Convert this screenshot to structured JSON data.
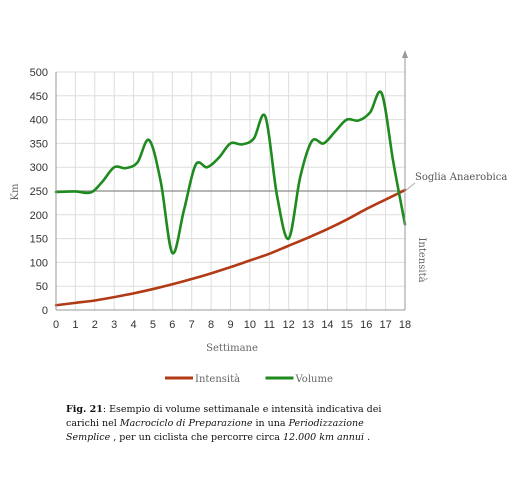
{
  "chart_data": {
    "type": "line",
    "xlabel": "Settimane",
    "ylabel": "Km",
    "y2label": "Intensità",
    "xlim": [
      0,
      18
    ],
    "ylim": [
      0,
      500
    ],
    "x_ticks": [
      0,
      1,
      2,
      3,
      4,
      5,
      6,
      7,
      8,
      9,
      10,
      11,
      12,
      13,
      14,
      15,
      16,
      17,
      18
    ],
    "y_ticks": [
      0,
      50,
      100,
      150,
      200,
      250,
      300,
      350,
      400,
      450,
      500
    ],
    "grid": true,
    "legend_position": "bottom",
    "reference_line": {
      "y": 250,
      "label": "Soglia Anaerobica"
    },
    "series": [
      {
        "name": "Intensità",
        "color": "#b23a14",
        "x": [
          0,
          1,
          2,
          3,
          4,
          5,
          6,
          7,
          8,
          9,
          10,
          11,
          12,
          13,
          14,
          15,
          16,
          17,
          18
        ],
        "values": [
          10,
          15,
          20,
          27,
          35,
          44,
          54,
          65,
          77,
          90,
          104,
          118,
          135,
          152,
          170,
          190,
          212,
          232,
          252
        ]
      },
      {
        "name": "Volume",
        "color": "#1f8a1f",
        "x": [
          0,
          1,
          1.8,
          2.4,
          3,
          3.6,
          4.2,
          4.8,
          5.4,
          6,
          6.6,
          7.2,
          7.8,
          8.4,
          9,
          9.6,
          10.2,
          10.8,
          11.4,
          12,
          12.6,
          13.2,
          13.8,
          14.4,
          15,
          15.6,
          16.2,
          16.8,
          17.4,
          18
        ],
        "values": [
          248,
          249,
          247,
          270,
          300,
          298,
          310,
          357,
          270,
          120,
          210,
          305,
          300,
          320,
          350,
          348,
          360,
          406,
          240,
          150,
          280,
          355,
          350,
          375,
          400,
          398,
          415,
          455,
          310,
          180
        ]
      }
    ]
  },
  "caption": {
    "fig_label": "Fig. 21",
    "text_1": ": Esempio di volume settimanale e intensità indicativa dei carichi nel ",
    "italic_1": "Macrociclo di Preparazione",
    "text_2": " in una ",
    "italic_2": "Periodizzazione Semplice",
    "text_3": " , per un ciclista che percorre circa ",
    "italic_3": "12.000 km annui",
    "text_4": " ."
  }
}
